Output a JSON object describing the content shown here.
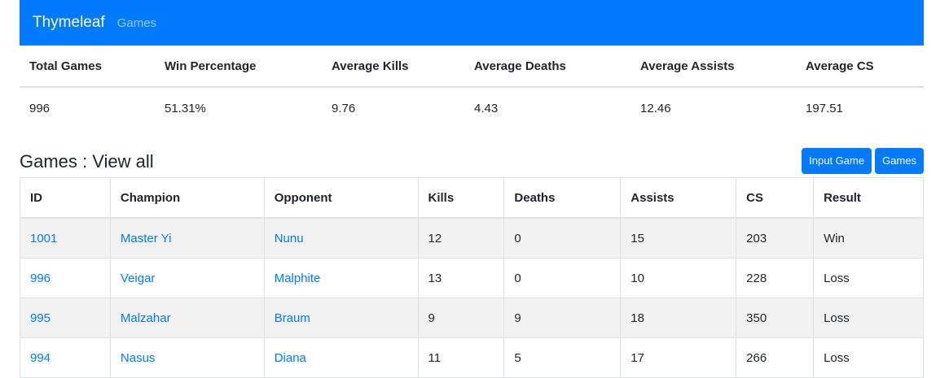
{
  "navbar": {
    "brand": "Thymeleaf",
    "link": "Games",
    "bg_color": "#007bff"
  },
  "stats": {
    "headers": [
      "Total Games",
      "Win Percentage",
      "Average Kills",
      "Average Deaths",
      "Average Assists",
      "Average CS"
    ],
    "values": [
      "996",
      "51.31%",
      "9.76",
      "4.43",
      "12.46",
      "197.51"
    ]
  },
  "games": {
    "title": "Games : View all",
    "buttons": {
      "input_game": "Input Game",
      "games": "Games"
    },
    "headers": [
      "ID",
      "Champion",
      "Opponent",
      "Kills",
      "Deaths",
      "Assists",
      "CS",
      "Result"
    ],
    "rows": [
      [
        "1001",
        "Master Yi",
        "Nunu",
        "12",
        "0",
        "15",
        "203",
        "Win"
      ],
      [
        "996",
        "Veigar",
        "Malphite",
        "13",
        "0",
        "10",
        "228",
        "Loss"
      ],
      [
        "995",
        "Malzahar",
        "Braum",
        "9",
        "9",
        "18",
        "350",
        "Loss"
      ],
      [
        "994",
        "Nasus",
        "Diana",
        "11",
        "5",
        "17",
        "266",
        "Loss"
      ]
    ]
  }
}
